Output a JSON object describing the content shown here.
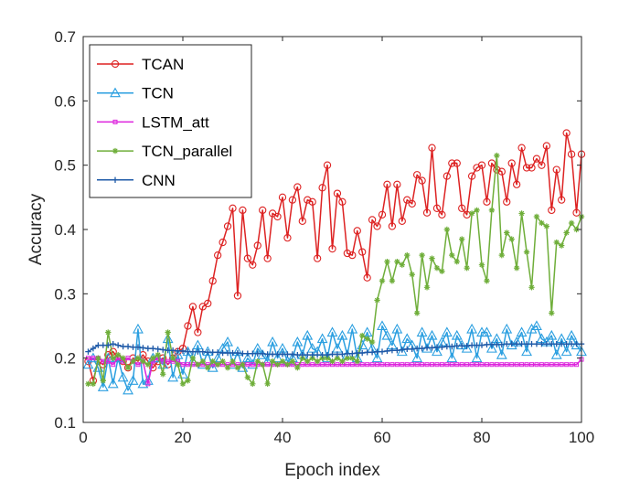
{
  "chart_data": {
    "type": "line",
    "title": "",
    "xlabel": "Epoch index",
    "ylabel": "Accuracy",
    "xlim": [
      0,
      100
    ],
    "ylim": [
      0.1,
      0.7
    ],
    "xticks": [
      0,
      20,
      40,
      60,
      80,
      100
    ],
    "xtick_labels": [
      "0",
      "20",
      "40",
      "60",
      "80",
      "100"
    ],
    "yticks": [
      0.1,
      0.2,
      0.3,
      0.4,
      0.5,
      0.6,
      0.7
    ],
    "ytick_labels": [
      "0.1",
      "0.2",
      "0.3",
      "0.4",
      "0.5",
      "0.6",
      "0.7"
    ],
    "grid": false,
    "legend_position": "top-left",
    "series": [
      {
        "name": "TCAN",
        "color": "#dd2222",
        "marker": "circle",
        "x": [
          1,
          2,
          3,
          4,
          5,
          6,
          7,
          8,
          9,
          10,
          11,
          12,
          13,
          14,
          15,
          16,
          17,
          18,
          19,
          20,
          21,
          22,
          23,
          24,
          25,
          26,
          27,
          28,
          29,
          30,
          31,
          32,
          33,
          34,
          35,
          36,
          37,
          38,
          39,
          40,
          41,
          42,
          43,
          44,
          45,
          46,
          47,
          48,
          49,
          50,
          51,
          52,
          53,
          54,
          55,
          56,
          57,
          58,
          59,
          60,
          61,
          62,
          63,
          64,
          65,
          66,
          67,
          68,
          69,
          70,
          71,
          72,
          73,
          74,
          75,
          76,
          77,
          78,
          79,
          80,
          81,
          82,
          83,
          84,
          85,
          86,
          87,
          88,
          89,
          90,
          91,
          92,
          93,
          94,
          95,
          96,
          97,
          98,
          99,
          100
        ],
        "values": [
          0.195,
          0.165,
          0.195,
          0.19,
          0.205,
          0.21,
          0.2,
          0.195,
          0.185,
          0.2,
          0.195,
          0.205,
          0.195,
          0.185,
          0.195,
          0.2,
          0.19,
          0.2,
          0.21,
          0.215,
          0.25,
          0.28,
          0.24,
          0.28,
          0.285,
          0.32,
          0.36,
          0.38,
          0.405,
          0.433,
          0.297,
          0.43,
          0.355,
          0.345,
          0.375,
          0.43,
          0.355,
          0.425,
          0.42,
          0.45,
          0.387,
          0.446,
          0.466,
          0.413,
          0.446,
          0.443,
          0.355,
          0.465,
          0.5,
          0.37,
          0.456,
          0.443,
          0.363,
          0.36,
          0.398,
          0.365,
          0.325,
          0.415,
          0.405,
          0.423,
          0.47,
          0.405,
          0.47,
          0.413,
          0.446,
          0.44,
          0.485,
          0.476,
          0.426,
          0.527,
          0.433,
          0.423,
          0.483,
          0.503,
          0.503,
          0.433,
          0.423,
          0.483,
          0.496,
          0.5,
          0.443,
          0.503,
          0.493,
          0.49,
          0.443,
          0.503,
          0.47,
          0.527,
          0.496,
          0.496,
          0.51,
          0.5,
          0.53,
          0.43,
          0.493,
          0.446,
          0.55,
          0.517,
          0.426,
          0.517
        ]
      },
      {
        "name": "TCN",
        "color": "#2b9fe0",
        "marker": "triangle",
        "x": [
          1,
          2,
          3,
          4,
          5,
          6,
          7,
          8,
          9,
          10,
          11,
          12,
          13,
          14,
          15,
          16,
          17,
          18,
          19,
          20,
          21,
          22,
          23,
          24,
          25,
          26,
          27,
          28,
          29,
          30,
          31,
          32,
          33,
          34,
          35,
          36,
          37,
          38,
          39,
          40,
          41,
          42,
          43,
          44,
          45,
          46,
          47,
          48,
          49,
          50,
          51,
          52,
          53,
          54,
          55,
          56,
          57,
          58,
          59,
          60,
          61,
          62,
          63,
          64,
          65,
          66,
          67,
          68,
          69,
          70,
          71,
          72,
          73,
          74,
          75,
          76,
          77,
          78,
          79,
          80,
          81,
          82,
          83,
          84,
          85,
          86,
          87,
          88,
          89,
          90,
          91,
          92,
          93,
          94,
          95,
          96,
          97,
          98,
          99,
          100
        ],
        "values": [
          0.19,
          0.2,
          0.185,
          0.155,
          0.2,
          0.16,
          0.2,
          0.17,
          0.15,
          0.165,
          0.245,
          0.16,
          0.165,
          0.2,
          0.2,
          0.19,
          0.23,
          0.17,
          0.205,
          0.175,
          0.21,
          0.195,
          0.22,
          0.19,
          0.21,
          0.185,
          0.2,
          0.215,
          0.225,
          0.19,
          0.21,
          0.185,
          0.2,
          0.19,
          0.215,
          0.205,
          0.195,
          0.225,
          0.2,
          0.215,
          0.195,
          0.2,
          0.225,
          0.205,
          0.235,
          0.215,
          0.21,
          0.23,
          0.2,
          0.24,
          0.215,
          0.235,
          0.205,
          0.245,
          0.2,
          0.22,
          0.24,
          0.215,
          0.2,
          0.25,
          0.235,
          0.22,
          0.245,
          0.21,
          0.23,
          0.22,
          0.2,
          0.24,
          0.215,
          0.235,
          0.21,
          0.225,
          0.24,
          0.2,
          0.235,
          0.22,
          0.215,
          0.245,
          0.2,
          0.24,
          0.24,
          0.215,
          0.23,
          0.205,
          0.245,
          0.22,
          0.225,
          0.24,
          0.21,
          0.245,
          0.25,
          0.23,
          0.225,
          0.235,
          0.205,
          0.23,
          0.21,
          0.235,
          0.22,
          0.21
        ]
      },
      {
        "name": "LSTM_att",
        "color": "#dd22dd",
        "marker": "square",
        "x": [
          1,
          2,
          3,
          4,
          5,
          6,
          7,
          8,
          9,
          10,
          11,
          12,
          13,
          14,
          15,
          16,
          17,
          18,
          19,
          20,
          21,
          22,
          23,
          24,
          25,
          26,
          27,
          28,
          29,
          30,
          31,
          32,
          33,
          34,
          35,
          36,
          37,
          38,
          39,
          40,
          41,
          42,
          43,
          44,
          45,
          46,
          47,
          48,
          49,
          50,
          51,
          52,
          53,
          54,
          55,
          56,
          57,
          58,
          59,
          60,
          61,
          62,
          63,
          64,
          65,
          66,
          67,
          68,
          69,
          70,
          71,
          72,
          73,
          74,
          75,
          76,
          77,
          78,
          79,
          80,
          81,
          82,
          83,
          84,
          85,
          86,
          87,
          88,
          89,
          90,
          91,
          92,
          93,
          94,
          95,
          96,
          97,
          98,
          99,
          100
        ],
        "values": [
          0.2,
          0.2,
          0.2,
          0.195,
          0.195,
          0.19,
          0.2,
          0.195,
          0.2,
          0.195,
          0.19,
          0.195,
          0.16,
          0.195,
          0.2,
          0.195,
          0.195,
          0.195,
          0.195,
          0.19,
          0.19,
          0.19,
          0.19,
          0.19,
          0.19,
          0.19,
          0.19,
          0.19,
          0.19,
          0.19,
          0.19,
          0.19,
          0.19,
          0.19,
          0.19,
          0.19,
          0.19,
          0.19,
          0.19,
          0.19,
          0.19,
          0.19,
          0.19,
          0.19,
          0.19,
          0.19,
          0.19,
          0.19,
          0.19,
          0.19,
          0.19,
          0.19,
          0.19,
          0.19,
          0.19,
          0.19,
          0.19,
          0.19,
          0.19,
          0.19,
          0.19,
          0.19,
          0.19,
          0.19,
          0.19,
          0.19,
          0.19,
          0.19,
          0.19,
          0.19,
          0.19,
          0.19,
          0.19,
          0.19,
          0.19,
          0.19,
          0.19,
          0.19,
          0.19,
          0.19,
          0.19,
          0.19,
          0.19,
          0.19,
          0.19,
          0.19,
          0.19,
          0.19,
          0.19,
          0.19,
          0.19,
          0.19,
          0.19,
          0.19,
          0.19,
          0.19,
          0.19,
          0.19,
          0.19,
          0.198
        ]
      },
      {
        "name": "TCN_parallel",
        "color": "#6fae3a",
        "marker": "star",
        "x": [
          1,
          2,
          3,
          4,
          5,
          6,
          7,
          8,
          9,
          10,
          11,
          12,
          13,
          14,
          15,
          16,
          17,
          18,
          19,
          20,
          21,
          22,
          23,
          24,
          25,
          26,
          27,
          28,
          29,
          30,
          31,
          32,
          33,
          34,
          35,
          36,
          37,
          38,
          39,
          40,
          41,
          42,
          43,
          44,
          45,
          46,
          47,
          48,
          49,
          50,
          51,
          52,
          53,
          54,
          55,
          56,
          57,
          58,
          59,
          60,
          61,
          62,
          63,
          64,
          65,
          66,
          67,
          68,
          69,
          70,
          71,
          72,
          73,
          74,
          75,
          76,
          77,
          78,
          79,
          80,
          81,
          82,
          83,
          84,
          85,
          86,
          87,
          88,
          89,
          90,
          91,
          92,
          93,
          94,
          95,
          96,
          97,
          98,
          99,
          100
        ],
        "values": [
          0.16,
          0.16,
          0.2,
          0.165,
          0.24,
          0.2,
          0.205,
          0.2,
          0.185,
          0.195,
          0.2,
          0.195,
          0.19,
          0.2,
          0.205,
          0.175,
          0.24,
          0.2,
          0.19,
          0.16,
          0.165,
          0.2,
          0.19,
          0.195,
          0.185,
          0.195,
          0.19,
          0.195,
          0.185,
          0.195,
          0.185,
          0.19,
          0.17,
          0.16,
          0.195,
          0.19,
          0.16,
          0.195,
          0.19,
          0.195,
          0.19,
          0.195,
          0.185,
          0.2,
          0.195,
          0.2,
          0.195,
          0.2,
          0.2,
          0.195,
          0.2,
          0.195,
          0.2,
          0.2,
          0.195,
          0.235,
          0.23,
          0.225,
          0.29,
          0.32,
          0.35,
          0.32,
          0.35,
          0.345,
          0.36,
          0.33,
          0.27,
          0.36,
          0.31,
          0.355,
          0.34,
          0.335,
          0.4,
          0.36,
          0.35,
          0.385,
          0.34,
          0.425,
          0.43,
          0.345,
          0.32,
          0.43,
          0.515,
          0.36,
          0.395,
          0.385,
          0.34,
          0.425,
          0.365,
          0.31,
          0.42,
          0.41,
          0.405,
          0.27,
          0.38,
          0.375,
          0.395,
          0.41,
          0.4,
          0.42
        ]
      },
      {
        "name": "CNN",
        "color": "#1f5aa8",
        "marker": "plus",
        "x": [
          1,
          2,
          3,
          4,
          5,
          6,
          7,
          8,
          9,
          10,
          11,
          12,
          13,
          14,
          15,
          16,
          17,
          18,
          19,
          20,
          21,
          22,
          23,
          24,
          25,
          26,
          27,
          28,
          29,
          30,
          31,
          32,
          33,
          34,
          35,
          36,
          37,
          38,
          39,
          40,
          41,
          42,
          43,
          44,
          45,
          46,
          47,
          48,
          49,
          50,
          51,
          52,
          53,
          54,
          55,
          56,
          57,
          58,
          59,
          60,
          61,
          62,
          63,
          64,
          65,
          66,
          67,
          68,
          69,
          70,
          71,
          72,
          73,
          74,
          75,
          76,
          77,
          78,
          79,
          80,
          81,
          82,
          83,
          84,
          85,
          86,
          87,
          88,
          89,
          90,
          91,
          92,
          93,
          94,
          95,
          96,
          97,
          98,
          99,
          100
        ],
        "values": [
          0.21,
          0.215,
          0.22,
          0.22,
          0.22,
          0.222,
          0.22,
          0.218,
          0.218,
          0.217,
          0.217,
          0.216,
          0.215,
          0.215,
          0.214,
          0.213,
          0.212,
          0.212,
          0.211,
          0.211,
          0.21,
          0.21,
          0.21,
          0.21,
          0.209,
          0.209,
          0.209,
          0.208,
          0.208,
          0.208,
          0.208,
          0.207,
          0.207,
          0.207,
          0.207,
          0.207,
          0.206,
          0.206,
          0.206,
          0.206,
          0.206,
          0.206,
          0.205,
          0.205,
          0.205,
          0.205,
          0.205,
          0.205,
          0.205,
          0.206,
          0.206,
          0.206,
          0.207,
          0.207,
          0.208,
          0.208,
          0.209,
          0.209,
          0.21,
          0.21,
          0.211,
          0.212,
          0.212,
          0.213,
          0.214,
          0.214,
          0.215,
          0.215,
          0.216,
          0.216,
          0.217,
          0.217,
          0.218,
          0.218,
          0.219,
          0.219,
          0.219,
          0.22,
          0.22,
          0.22,
          0.221,
          0.221,
          0.221,
          0.221,
          0.222,
          0.222,
          0.222,
          0.222,
          0.222,
          0.222,
          0.222,
          0.222,
          0.222,
          0.222,
          0.222,
          0.222,
          0.222,
          0.222,
          0.222,
          0.222
        ]
      }
    ]
  }
}
